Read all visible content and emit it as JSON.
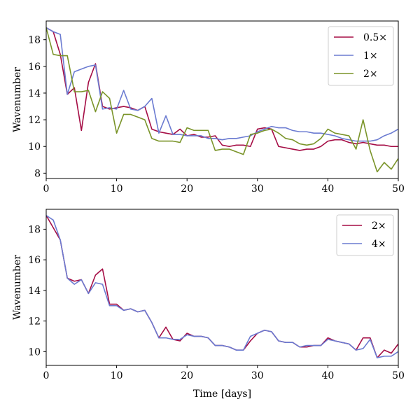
{
  "colors": {
    "crimson": "#a50d45",
    "blue": "#6b7bd1",
    "green": "#7a9429"
  },
  "chart_data": [
    {
      "type": "line",
      "xlabel": "",
      "ylabel": "Wavenumber",
      "xlim": [
        0,
        50
      ],
      "ylim": [
        7.6,
        19.4
      ],
      "xticks": [
        0,
        10,
        20,
        30,
        40,
        50
      ],
      "yticks": [
        8,
        10,
        12,
        14,
        16,
        18
      ],
      "legend_position": "top-right",
      "series": [
        {
          "name": "0.5×",
          "color": "#a50d45",
          "x": [
            0,
            1,
            2,
            3,
            4,
            5,
            6,
            7,
            8,
            9,
            10,
            11,
            12,
            13,
            14,
            15,
            16,
            17,
            18,
            19,
            20,
            21,
            22,
            23,
            24,
            25,
            26,
            27,
            28,
            29,
            30,
            31,
            32,
            33,
            34,
            35,
            36,
            37,
            38,
            39,
            40,
            41,
            42,
            43,
            44,
            45,
            46,
            47,
            48,
            49,
            50
          ],
          "y": [
            18.9,
            18.6,
            16.9,
            13.9,
            14.4,
            11.2,
            14.8,
            16.2,
            13.0,
            12.8,
            12.9,
            13.0,
            12.9,
            12.7,
            13.0,
            11.3,
            11.1,
            11.0,
            10.9,
            11.3,
            10.8,
            10.9,
            10.7,
            10.7,
            10.8,
            10.1,
            10.0,
            10.1,
            10.1,
            10.0,
            11.3,
            11.4,
            11.3,
            10.0,
            9.9,
            9.8,
            9.7,
            9.8,
            9.8,
            10.0,
            10.4,
            10.5,
            10.5,
            10.3,
            10.2,
            10.3,
            10.2,
            10.1,
            10.1,
            10.0,
            10.0
          ]
        },
        {
          "name": "1×",
          "color": "#6b7bd1",
          "x": [
            0,
            1,
            2,
            3,
            4,
            5,
            6,
            7,
            8,
            9,
            10,
            11,
            12,
            13,
            14,
            15,
            16,
            17,
            18,
            19,
            20,
            21,
            22,
            23,
            24,
            25,
            26,
            27,
            28,
            29,
            30,
            31,
            32,
            33,
            34,
            35,
            36,
            37,
            38,
            39,
            40,
            41,
            42,
            43,
            44,
            45,
            46,
            47,
            48,
            49,
            50
          ],
          "y": [
            18.9,
            18.6,
            18.4,
            13.9,
            15.6,
            15.8,
            16.0,
            16.1,
            12.8,
            12.9,
            12.8,
            14.2,
            12.8,
            12.7,
            13.0,
            13.6,
            11.0,
            12.3,
            10.9,
            10.9,
            10.8,
            10.8,
            10.8,
            10.6,
            10.6,
            10.5,
            10.6,
            10.6,
            10.7,
            10.8,
            11.1,
            11.3,
            11.5,
            11.4,
            11.4,
            11.2,
            11.1,
            11.1,
            11.0,
            11.0,
            10.9,
            10.8,
            10.6,
            10.5,
            10.4,
            10.4,
            10.4,
            10.5,
            10.8,
            11.0,
            11.3
          ]
        },
        {
          "name": "2×",
          "color": "#7a9429",
          "x": [
            0,
            1,
            2,
            3,
            4,
            5,
            6,
            7,
            8,
            9,
            10,
            11,
            12,
            13,
            14,
            15,
            16,
            17,
            18,
            19,
            20,
            21,
            22,
            23,
            24,
            25,
            26,
            27,
            28,
            29,
            30,
            31,
            32,
            33,
            34,
            35,
            36,
            37,
            38,
            39,
            40,
            41,
            42,
            43,
            44,
            45,
            46,
            47,
            48,
            49,
            50
          ],
          "y": [
            18.9,
            16.9,
            16.8,
            16.8,
            14.1,
            14.1,
            14.2,
            12.6,
            14.1,
            13.6,
            11.0,
            12.4,
            12.4,
            12.2,
            12.0,
            10.6,
            10.4,
            10.4,
            10.4,
            10.3,
            11.4,
            11.2,
            11.2,
            11.2,
            9.7,
            9.8,
            9.8,
            9.6,
            9.4,
            10.9,
            11.0,
            11.2,
            11.3,
            11.0,
            10.6,
            10.5,
            10.2,
            10.1,
            10.2,
            10.6,
            11.3,
            11.0,
            10.9,
            10.8,
            9.8,
            12.0,
            9.7,
            8.1,
            8.8,
            8.3,
            9.1
          ]
        }
      ]
    },
    {
      "type": "line",
      "xlabel": "Time [days]",
      "ylabel": "Wavenumber",
      "xlim": [
        0,
        50
      ],
      "ylim": [
        9.1,
        19.3
      ],
      "xticks": [
        0,
        10,
        20,
        30,
        40,
        50
      ],
      "yticks": [
        10,
        12,
        14,
        16,
        18
      ],
      "legend_position": "top-right",
      "series": [
        {
          "name": "2×",
          "color": "#a50d45",
          "x": [
            0,
            1,
            2,
            3,
            4,
            5,
            6,
            7,
            8,
            9,
            10,
            11,
            12,
            13,
            14,
            15,
            16,
            17,
            18,
            19,
            20,
            21,
            22,
            23,
            24,
            25,
            26,
            27,
            28,
            29,
            30,
            31,
            32,
            33,
            34,
            35,
            36,
            37,
            38,
            39,
            40,
            41,
            42,
            43,
            44,
            45,
            46,
            47,
            48,
            49,
            50
          ],
          "y": [
            18.9,
            18.1,
            17.3,
            14.8,
            14.6,
            14.7,
            13.8,
            15.0,
            15.4,
            13.1,
            13.1,
            12.7,
            12.8,
            12.6,
            12.7,
            11.9,
            10.9,
            11.6,
            10.8,
            10.7,
            11.2,
            11.0,
            11.0,
            10.9,
            10.4,
            10.4,
            10.3,
            10.1,
            10.1,
            10.7,
            11.2,
            11.4,
            11.3,
            10.7,
            10.6,
            10.6,
            10.3,
            10.3,
            10.4,
            10.4,
            10.9,
            10.7,
            10.6,
            10.5,
            10.1,
            10.9,
            10.9,
            9.6,
            10.1,
            9.9,
            10.5
          ]
        },
        {
          "name": "4×",
          "color": "#6b7bd1",
          "x": [
            0,
            1,
            2,
            3,
            4,
            5,
            6,
            7,
            8,
            9,
            10,
            11,
            12,
            13,
            14,
            15,
            16,
            17,
            18,
            19,
            20,
            21,
            22,
            23,
            24,
            25,
            26,
            27,
            28,
            29,
            30,
            31,
            32,
            33,
            34,
            35,
            36,
            37,
            38,
            39,
            40,
            41,
            42,
            43,
            44,
            45,
            46,
            47,
            48,
            49,
            50
          ],
          "y": [
            18.9,
            18.6,
            17.3,
            14.8,
            14.4,
            14.7,
            13.8,
            14.5,
            14.4,
            13.0,
            13.0,
            12.7,
            12.8,
            12.6,
            12.7,
            11.9,
            10.9,
            10.9,
            10.8,
            10.8,
            11.1,
            11.0,
            11.0,
            10.9,
            10.4,
            10.4,
            10.3,
            10.1,
            10.1,
            11.0,
            11.2,
            11.4,
            11.3,
            10.7,
            10.6,
            10.6,
            10.3,
            10.4,
            10.4,
            10.4,
            10.8,
            10.7,
            10.6,
            10.5,
            10.1,
            10.2,
            10.8,
            9.6,
            9.7,
            9.7,
            10.0
          ]
        }
      ]
    }
  ]
}
